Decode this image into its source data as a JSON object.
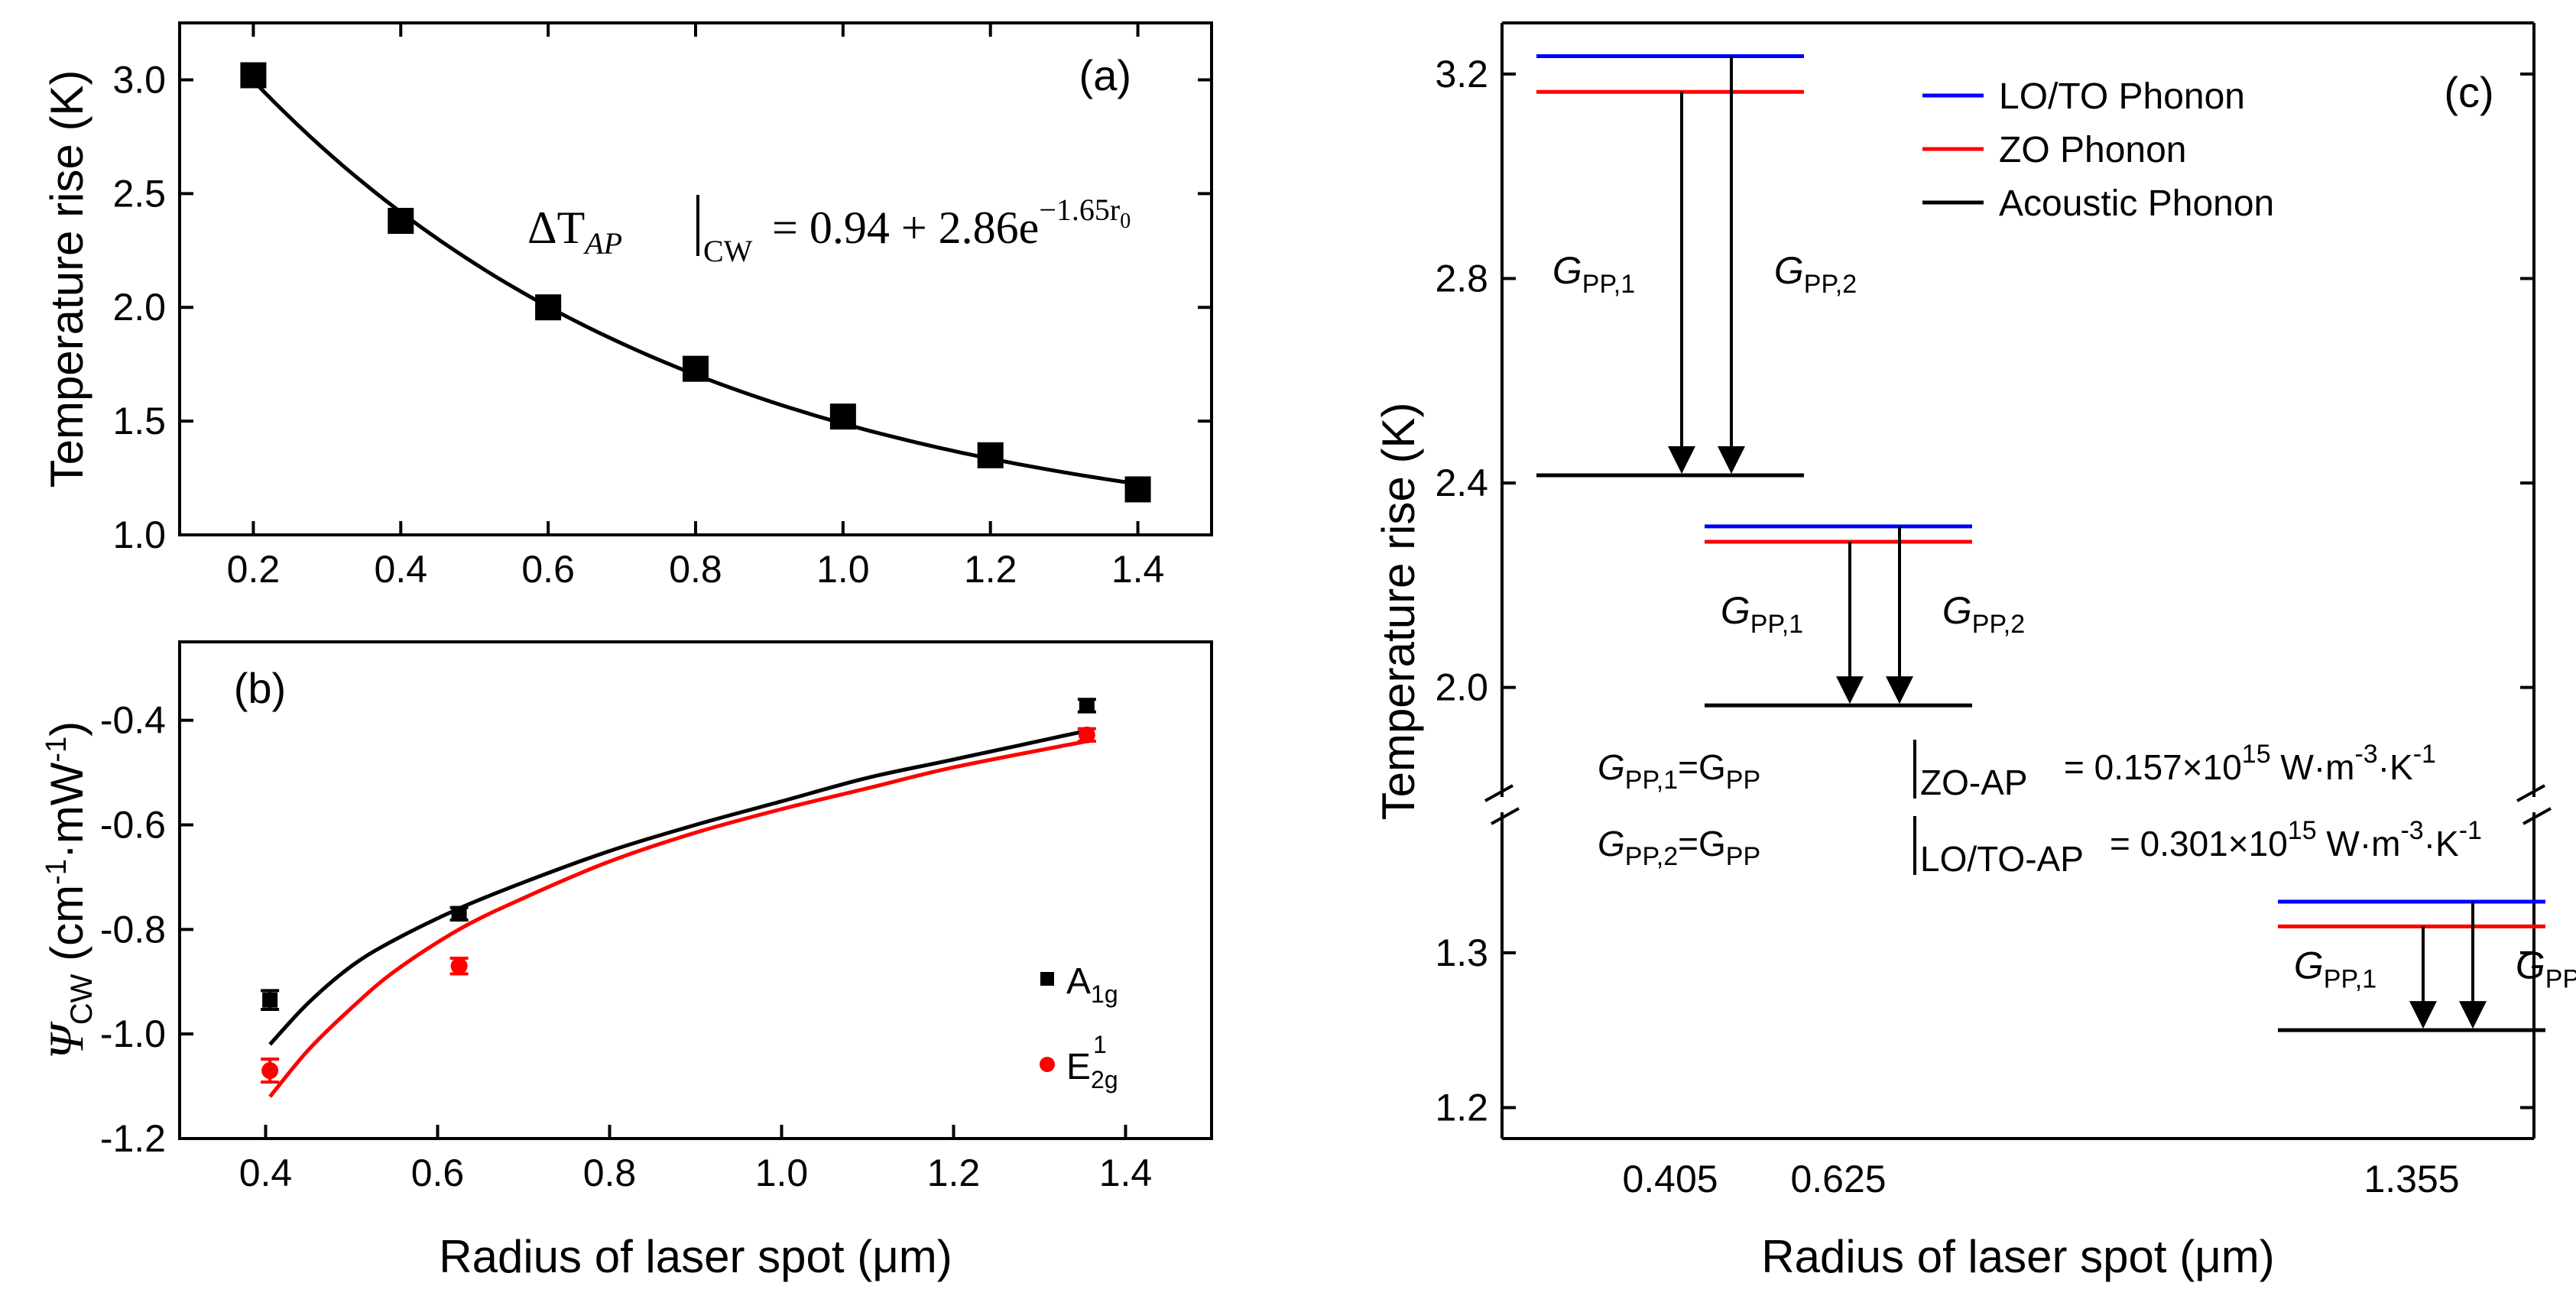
{
  "chart_data": [
    {
      "id": "a",
      "type": "scatter",
      "panel_label": "(a)",
      "xlabel": "",
      "ylabel": "Temperature rise (K)",
      "xlim": [
        0.1,
        1.5
      ],
      "ylim": [
        1.0,
        3.25
      ],
      "xticks": [
        0.2,
        0.4,
        0.6,
        0.8,
        1.0,
        1.2,
        1.4
      ],
      "xtick_labels": [
        "0.2",
        "0.4",
        "0.6",
        "0.8",
        "1.0",
        "1.2",
        "1.4"
      ],
      "yticks": [
        1.0,
        1.5,
        2.0,
        2.5,
        3.0
      ],
      "ytick_labels": [
        "1.0",
        "1.5",
        "2.0",
        "2.5",
        "3.0"
      ],
      "series": [
        {
          "name": "ΔT_AP (CW)",
          "marker": "square",
          "color": "#000000",
          "x": [
            0.2,
            0.4,
            0.6,
            0.8,
            1.0,
            1.2,
            1.4
          ],
          "y": [
            3.02,
            2.38,
            2.0,
            1.73,
            1.52,
            1.35,
            1.2
          ]
        }
      ],
      "fit": {
        "a": 0.94,
        "b": 2.86,
        "c": -1.65,
        "x_range": [
          0.2,
          1.4
        ],
        "color": "#000000"
      },
      "equation": {
        "lhs": "ΔT",
        "lhs_sub": "AP",
        "bar_sub": "CW",
        "rhs": "= 0.94 + 2.86e",
        "exponent": "−1.65r",
        "exponent_sub": "0"
      }
    },
    {
      "id": "b",
      "type": "scatter",
      "panel_label": "(b)",
      "xlabel": "Radius of laser spot (μm)",
      "ylabel_symbol": "Ψ",
      "ylabel_sub": "CW",
      "ylabel_unit_1": " (cm",
      "ylabel_exp_1": "-1",
      "ylabel_unit_2": "·mW",
      "ylabel_exp_2": "-1",
      "ylabel_unit_3": ")",
      "xlim": [
        0.3,
        1.5
      ],
      "ylim": [
        -1.2,
        -0.25
      ],
      "xticks": [
        0.4,
        0.6,
        0.8,
        1.0,
        1.2,
        1.4
      ],
      "xtick_labels": [
        "0.4",
        "0.6",
        "0.8",
        "1.0",
        "1.2",
        "1.4"
      ],
      "yticks": [
        -1.2,
        -1.0,
        -0.8,
        -0.6,
        -0.4
      ],
      "ytick_labels": [
        "-1.2",
        "-1.0",
        "-0.8",
        "-0.6",
        "-0.4"
      ],
      "series": [
        {
          "name": "A",
          "name_sub": "1g",
          "marker": "square",
          "color": "#000000",
          "x": [
            0.405,
            0.625,
            1.355
          ],
          "y": [
            -0.935,
            -0.77,
            -0.372
          ],
          "err": [
            0.018,
            0.012,
            0.012
          ]
        },
        {
          "name": "E",
          "name_sub": "2g",
          "name_sup": "1",
          "marker": "circle",
          "color": "#ff0000",
          "x": [
            0.405,
            0.625,
            1.355
          ],
          "y": [
            -1.07,
            -0.87,
            -0.428
          ],
          "err": [
            0.022,
            0.015,
            0.012
          ]
        }
      ],
      "fits": [
        {
          "color": "#000000",
          "x": [
            0.405,
            0.45,
            0.5,
            0.55,
            0.625,
            0.7,
            0.8,
            0.9,
            1.0,
            1.1,
            1.2,
            1.355
          ],
          "y": [
            -1.02,
            -0.94,
            -0.87,
            -0.82,
            -0.76,
            -0.71,
            -0.65,
            -0.6,
            -0.555,
            -0.51,
            -0.475,
            -0.42
          ]
        },
        {
          "color": "#ff0000",
          "x": [
            0.405,
            0.45,
            0.5,
            0.55,
            0.625,
            0.7,
            0.8,
            0.9,
            1.0,
            1.1,
            1.2,
            1.355
          ],
          "y": [
            -1.12,
            -1.03,
            -0.95,
            -0.88,
            -0.8,
            -0.74,
            -0.67,
            -0.615,
            -0.57,
            -0.53,
            -0.49,
            -0.44
          ]
        }
      ]
    },
    {
      "id": "c",
      "type": "level-diagram",
      "panel_label": "(c)",
      "xlabel": "Radius of laser spot (μm)",
      "ylabel": "Temperature rise (K)",
      "xtick_labels": [
        "0.405",
        "0.625",
        "1.355"
      ],
      "ytick_labels_upper": [
        "2.0",
        "2.4",
        "2.8",
        "3.2"
      ],
      "ytick_labels_lower": [
        "1.2",
        "1.3"
      ],
      "axis_break": {
        "lower_range": [
          1.18,
          1.37
        ],
        "upper_range": [
          1.85,
          3.3
        ]
      },
      "legend": [
        {
          "label": "LO/TO Phonon",
          "color": "#0000ff",
          "text_color": "#0000ff"
        },
        {
          "label": "ZO Phonon",
          "color": "#ff0000",
          "text_color": "#ff0000"
        },
        {
          "label": "Acoustic Phonon",
          "color": "#000000",
          "text_color": "#000000"
        }
      ],
      "levels": [
        {
          "radius": "0.405",
          "lo_to": 3.235,
          "zo": 3.165,
          "acoustic": 2.415
        },
        {
          "radius": "0.625",
          "lo_to": 2.315,
          "zo": 2.285,
          "acoustic": 1.965
        },
        {
          "radius": "1.355",
          "lo_to": 1.333,
          "zo": 1.317,
          "acoustic": 1.25
        }
      ],
      "arrow_labels": {
        "g1_main": "G",
        "g1_sub": "PP,1",
        "g2_main": "G",
        "g2_sub": "PP,2"
      },
      "notes": [
        {
          "lhs_main": "G",
          "lhs_sub": "PP,1",
          "mid": "=G",
          "mid_sub": "PP",
          "bar_sub": "ZO-AP",
          "value": "= 0.157×10",
          "value_exp": "15",
          "unit": " W·m",
          "unit_exp1": "-3",
          "unit2": "·K",
          "unit_exp2": "-1"
        },
        {
          "lhs_main": "G",
          "lhs_sub": "PP,2",
          "mid": "=G",
          "mid_sub": "PP",
          "bar_sub": "LO/TO-AP",
          "value": "= 0.301×10",
          "value_exp": "15",
          "unit": " W·m",
          "unit_exp1": "-3",
          "unit2": "·K",
          "unit_exp2": "-1"
        }
      ]
    }
  ]
}
